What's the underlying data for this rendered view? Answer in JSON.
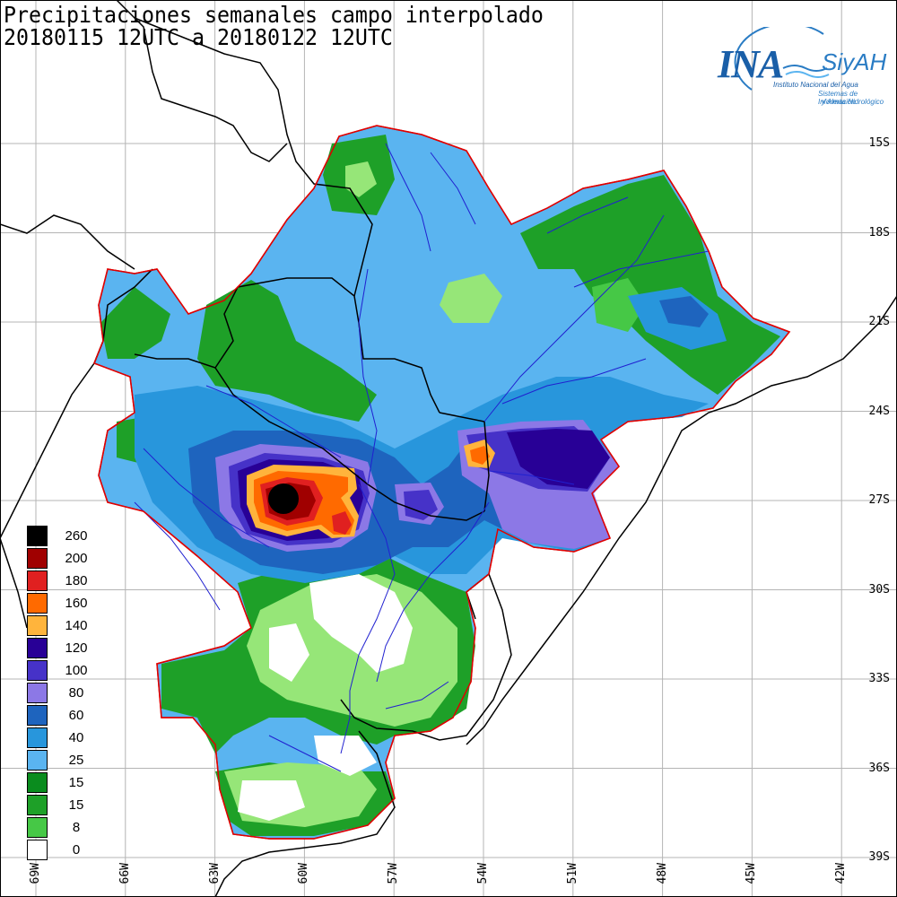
{
  "title": {
    "line1": "Precipitaciones semanales campo interpolado",
    "line2": "20180115 12UTC a 20180122 12UTC"
  },
  "logo": {
    "ina": "INA",
    "siyah": "SiyAH",
    "sub1": "Instituto Nacional del Agua",
    "sub2": "Sistemas de Información",
    "sub3": "y Alerta Hidrológico"
  },
  "lat_labels": [
    "15S",
    "18S",
    "21S",
    "24S",
    "27S",
    "30S",
    "33S",
    "36S",
    "39S"
  ],
  "lon_labels": [
    "69W",
    "66W",
    "63W",
    "60W",
    "57W",
    "54W",
    "51W",
    "48W",
    "45W",
    "42W"
  ],
  "legend": [
    {
      "label": "260",
      "color": "#000000"
    },
    {
      "label": "200",
      "color": "#a00000"
    },
    {
      "label": "180",
      "color": "#e02020"
    },
    {
      "label": "160",
      "color": "#ff6a00"
    },
    {
      "label": "140",
      "color": "#ffb43c"
    },
    {
      "label": "120",
      "color": "#280096"
    },
    {
      "label": "100",
      "color": "#4632c8"
    },
    {
      "label": "80",
      "color": "#8c78e6"
    },
    {
      "label": "60",
      "color": "#1e64be"
    },
    {
      "label": "40",
      "color": "#2896dc"
    },
    {
      "label": "25",
      "color": "#5ab4f0"
    },
    {
      "label": "15",
      "color": "#0a8c1e"
    },
    {
      "label": "15",
      "color": "#1ea028"
    },
    {
      "label": "8",
      "color": "#46c846"
    },
    {
      "label": "0",
      "color": "#ffffff"
    }
  ],
  "colors": {
    "grid": "#b4b4b4",
    "border": "#000000",
    "rivers": "#2020d0",
    "domain_outline": "#e00000",
    "green_light": "#96e678",
    "white": "#ffffff"
  }
}
